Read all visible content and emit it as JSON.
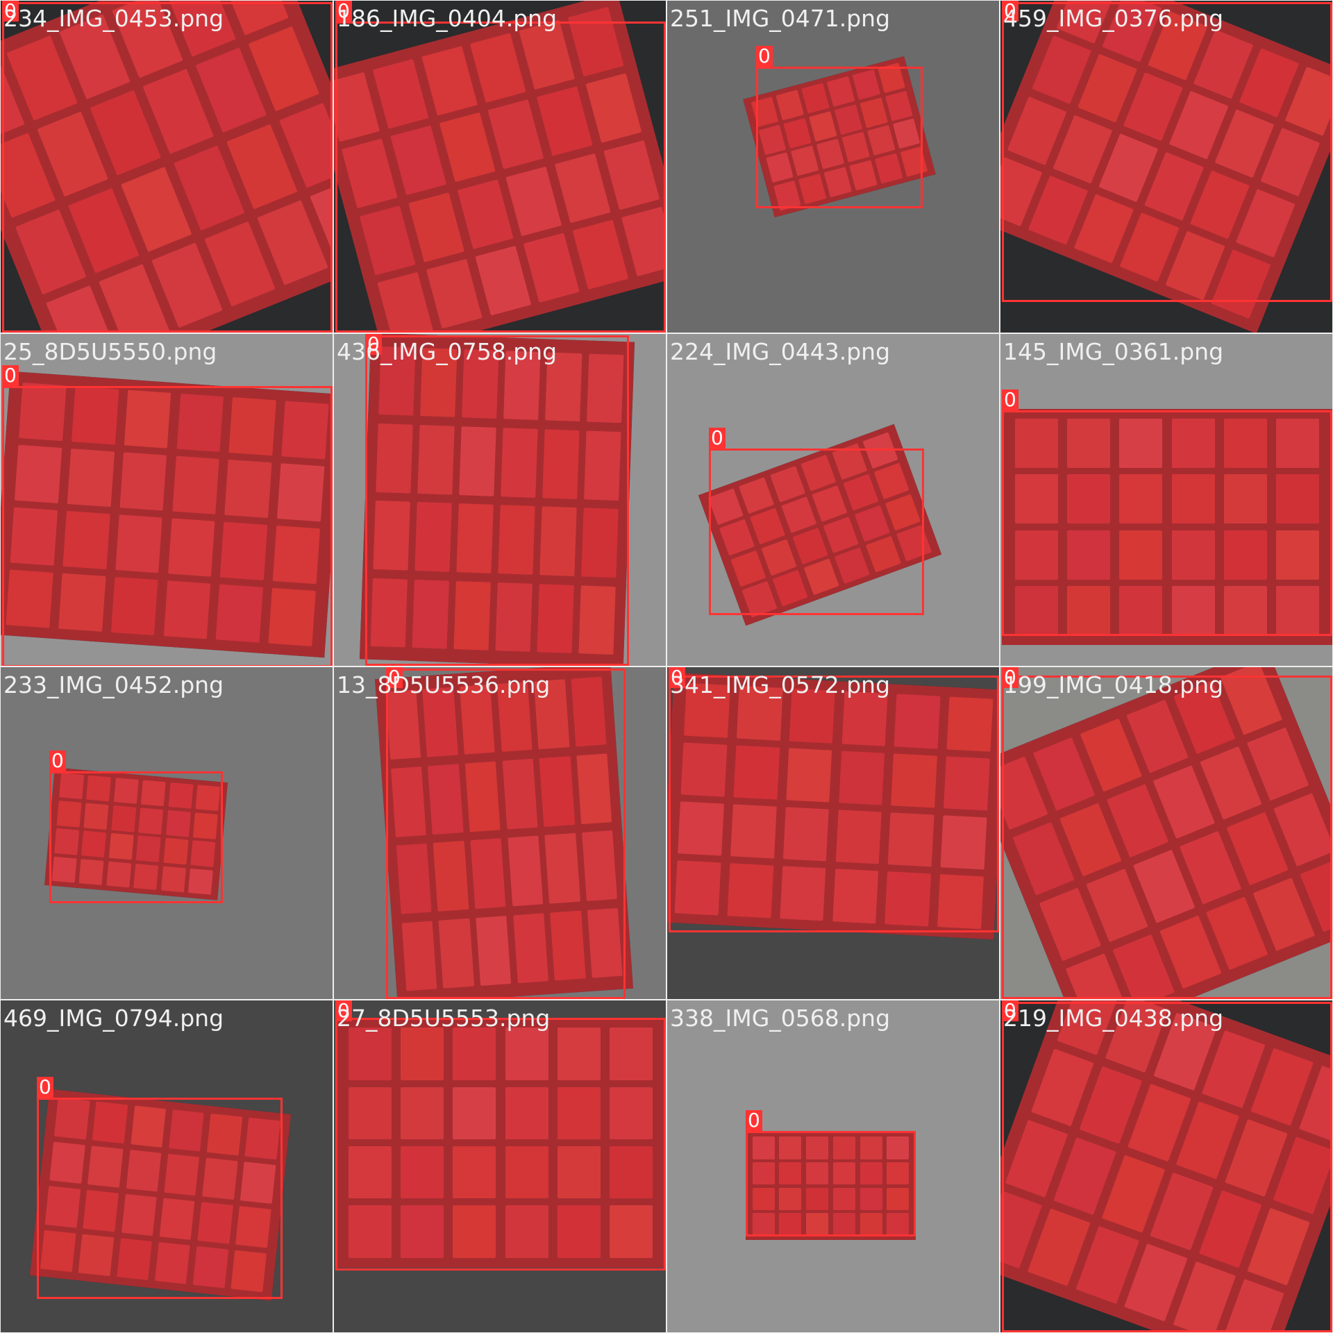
{
  "mosaic": {
    "class_label": "0",
    "tiles": [
      {
        "filename": "234_IMG_0453.png",
        "background": "dark-scene"
      },
      {
        "filename": "186_IMG_0404.png",
        "background": "dark-scene"
      },
      {
        "filename": "251_IMG_0471.png",
        "background": "gray"
      },
      {
        "filename": "459_IMG_0376.png",
        "background": "dark-scene"
      },
      {
        "filename": "25_8D5U5550.png",
        "background": "light-gray"
      },
      {
        "filename": "436_IMG_0758.png",
        "background": "light-gray"
      },
      {
        "filename": "224_IMG_0443.png",
        "background": "light-gray"
      },
      {
        "filename": "145_IMG_0361.png",
        "background": "light-gray"
      },
      {
        "filename": "233_IMG_0452.png",
        "background": "mid-gray"
      },
      {
        "filename": "13_8D5U5536.png",
        "background": "mid-gray"
      },
      {
        "filename": "341_IMG_0572.png",
        "background": "dark-gray"
      },
      {
        "filename": "199_IMG_0418.png",
        "background": "light-scene"
      },
      {
        "filename": "469_IMG_0794.png",
        "background": "dark-gray"
      },
      {
        "filename": "27_8D5U5553.png",
        "background": "dark-gray"
      },
      {
        "filename": "338_IMG_0568.png",
        "background": "light-gray"
      },
      {
        "filename": "219_IMG_0438.png",
        "background": "dark-scene"
      }
    ],
    "colors": {
      "detection_box": "#ff3333",
      "mask_fill": "#d72d32",
      "filename_text": "#f0f0f0"
    }
  }
}
